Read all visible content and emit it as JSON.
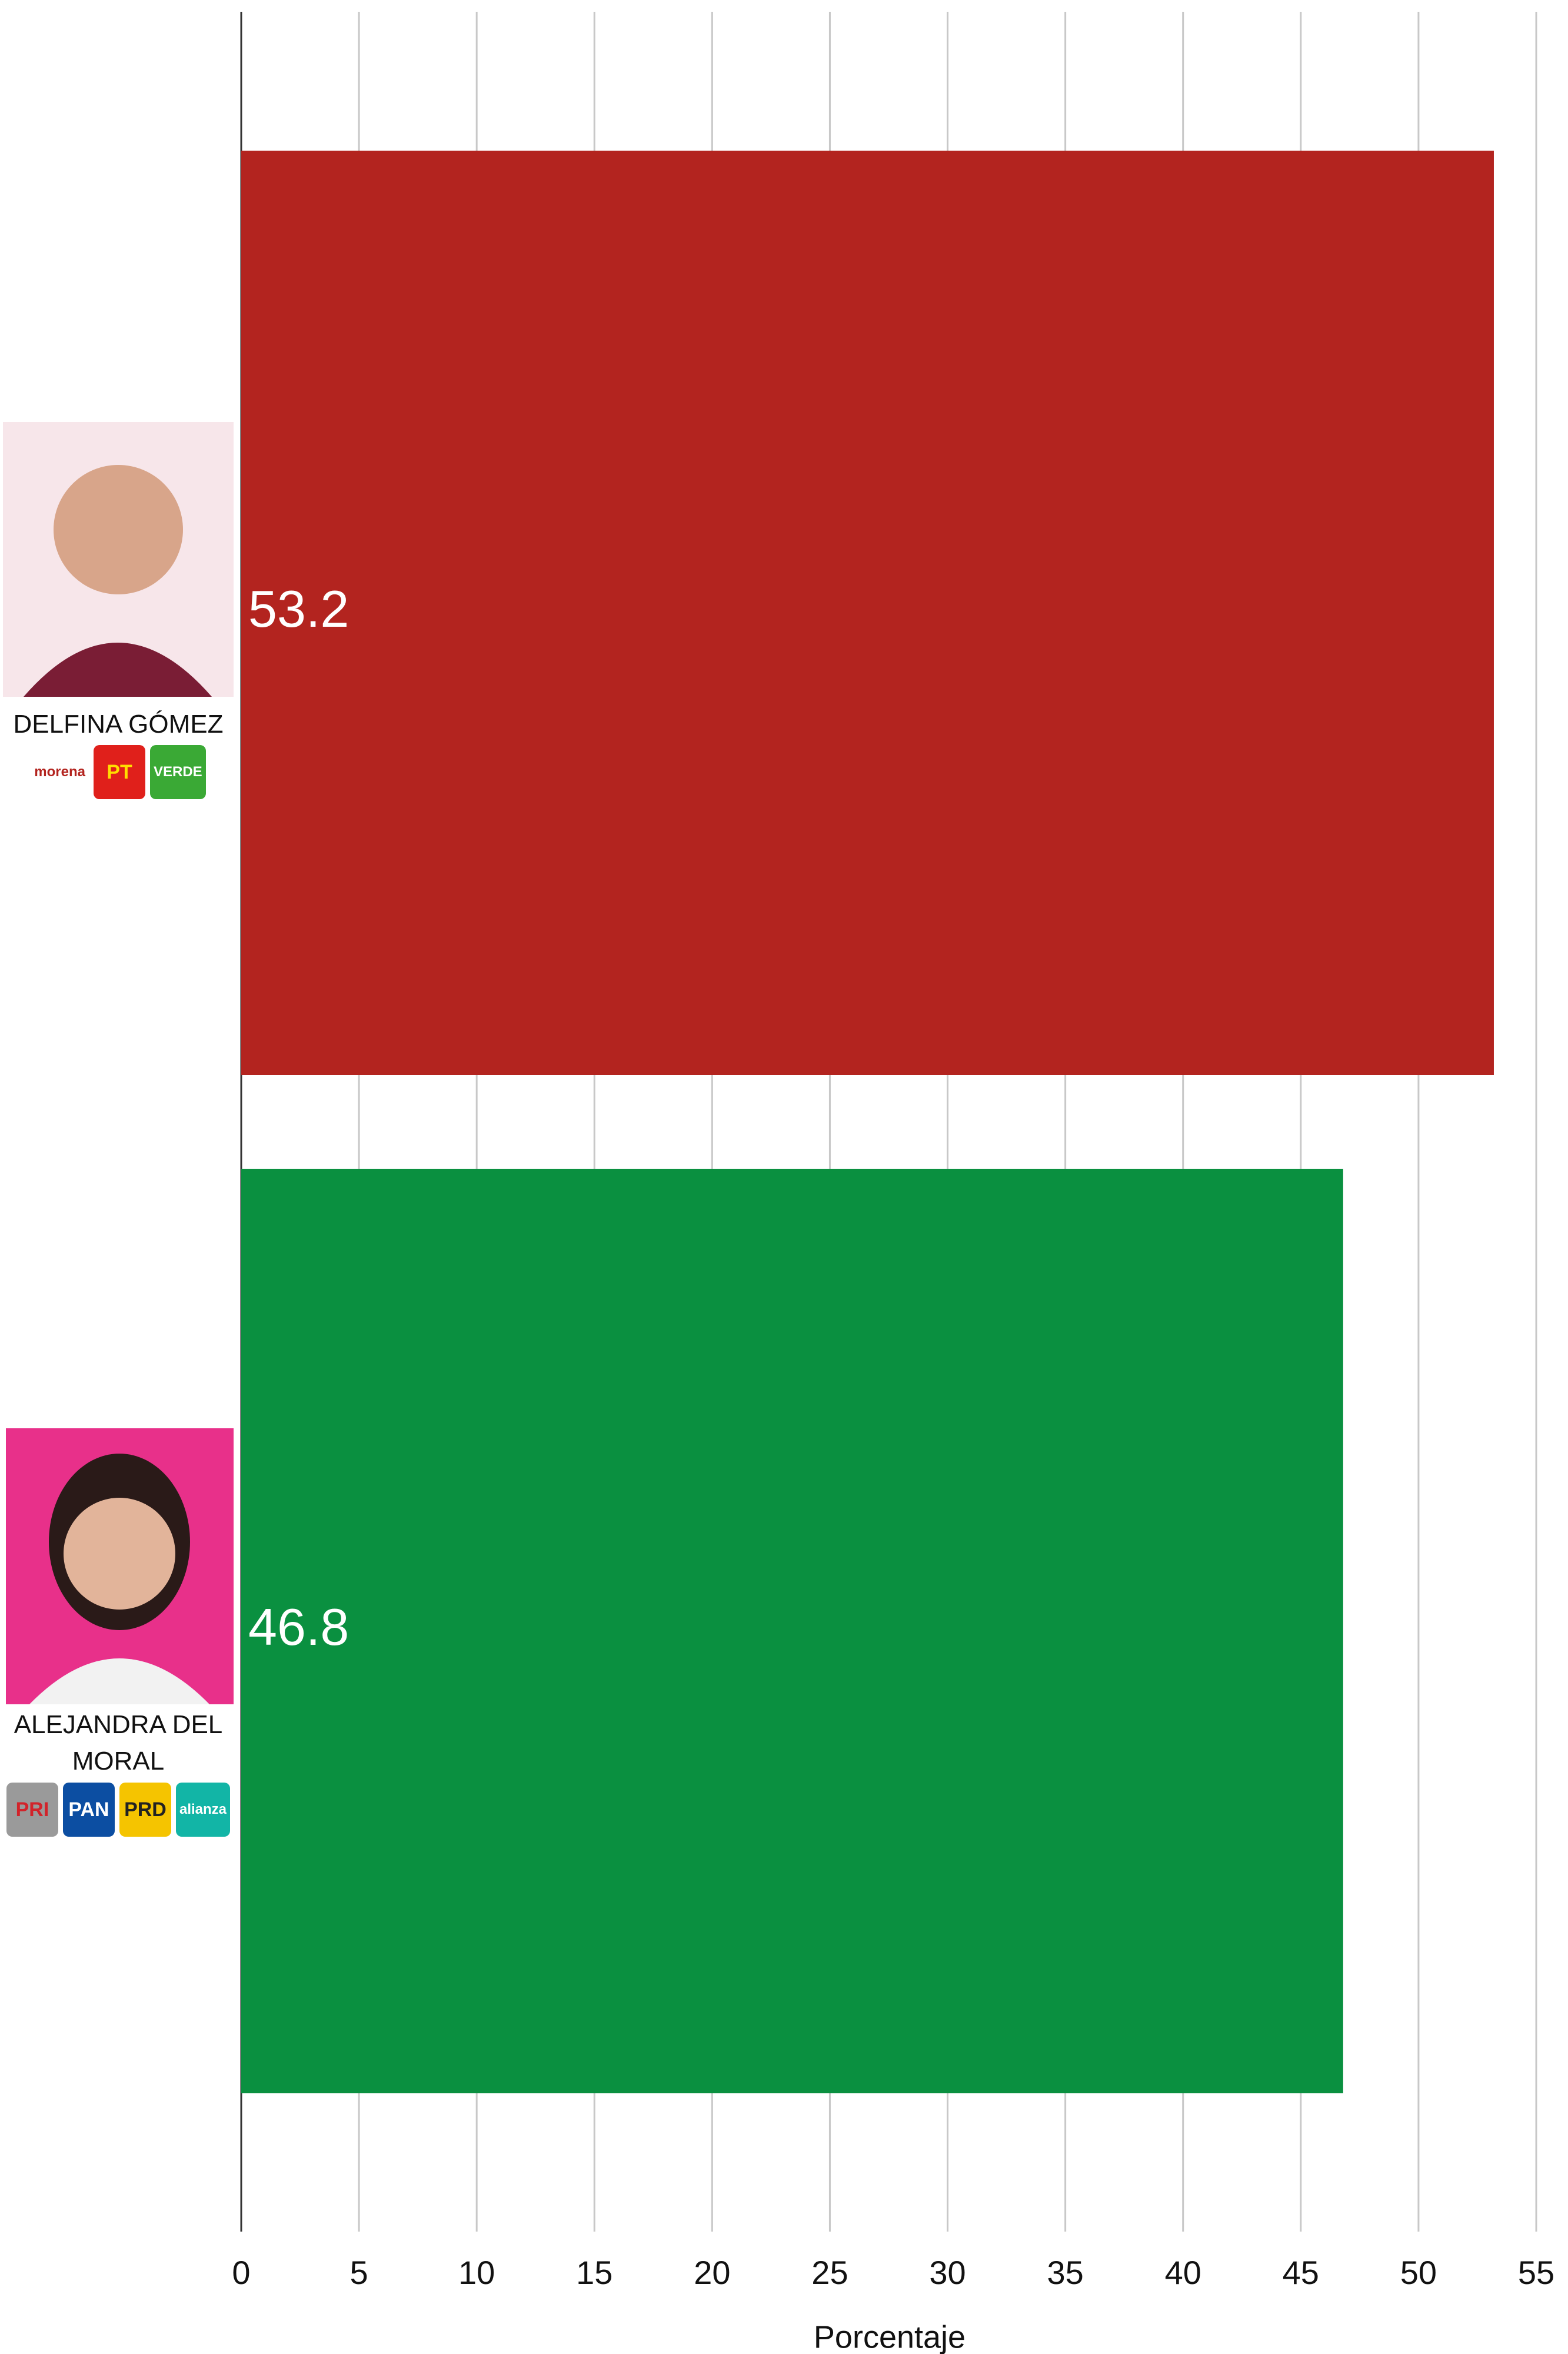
{
  "chart_data": {
    "type": "barh",
    "categories": [
      "DELFINA GÓMEZ",
      "ALEJANDRA DEL MORAL"
    ],
    "values": [
      53.2,
      46.8
    ],
    "colors": [
      "#b3241f",
      "#0a9040"
    ],
    "party_logos": [
      [
        {
          "label": "morena",
          "color": "#ffffff",
          "text_color": "#b3241f"
        },
        {
          "label": "PT",
          "color": "#e0201b",
          "text_color": "#ffde00"
        },
        {
          "label": "VERDE",
          "color": "#3aa935",
          "text_color": "#ffffff"
        }
      ],
      [
        {
          "label": "PRI",
          "color": "#9a9a9a",
          "text_color": "#d2232a"
        },
        {
          "label": "PAN",
          "color": "#0c4ea2",
          "text_color": "#ffffff"
        },
        {
          "label": "PRD",
          "color": "#f5c400",
          "text_color": "#222222"
        },
        {
          "label": "alianza",
          "color": "#12b5a6",
          "text_color": "#ffffff"
        }
      ]
    ],
    "xlabel": "Porcentaje",
    "xlim": [
      0,
      55
    ],
    "xticks": [
      0,
      5,
      10,
      15,
      20,
      25,
      30,
      35,
      40,
      45,
      50,
      55
    ],
    "grid": true
  }
}
